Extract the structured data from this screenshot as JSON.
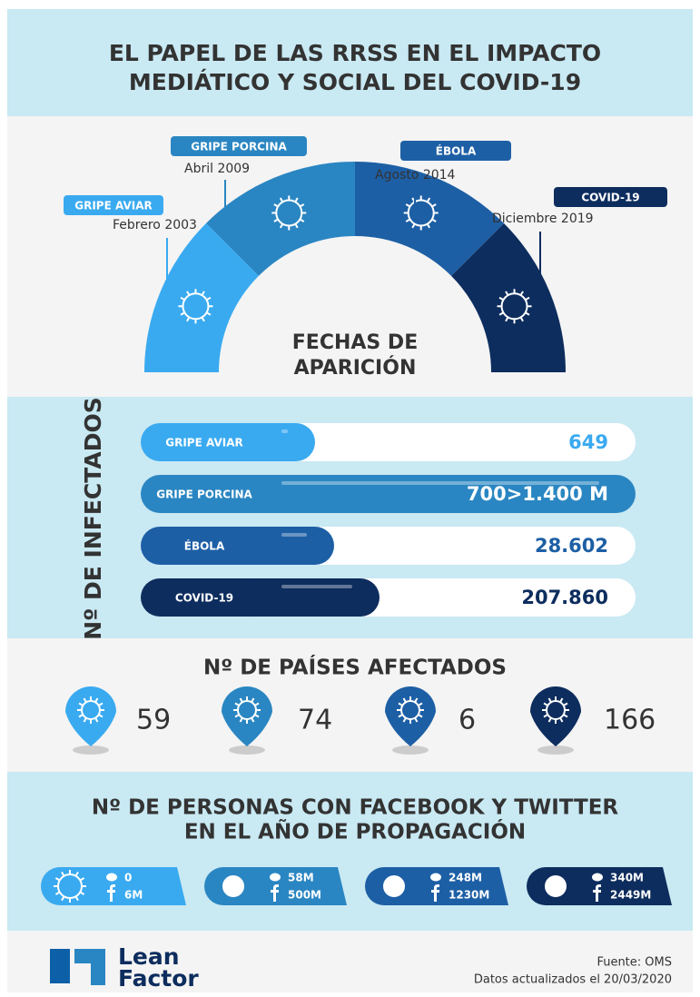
{
  "header": {
    "title_lines": [
      "EL PAPEL DE LAS RRSS EN EL IMPACTO",
      "MEDIÁTICO Y SOCIAL DEL COVID-19"
    ]
  },
  "timeline": {
    "center_lines": [
      "FECHAS DE",
      "APARICIÓN"
    ],
    "events": [
      {
        "name": "GRIPE AVIAR",
        "date": "Febrero 2003"
      },
      {
        "name": "GRIPE PORCINA",
        "date": "Abril 2009"
      },
      {
        "name": "ÉBOLA",
        "date": "Agosto 2014"
      },
      {
        "name": "COVID-19",
        "date": "Diciembre 2019"
      }
    ]
  },
  "infected": {
    "title": "Nº DE INFECTADOS",
    "rows": [
      {
        "name": "GRIPE AVIAR",
        "value": "649"
      },
      {
        "name": "GRIPE PORCINA",
        "value": "700>1.400 M"
      },
      {
        "name": "ÉBOLA",
        "value": "28.602"
      },
      {
        "name": "COVID-19",
        "value": "207.860"
      }
    ]
  },
  "countries": {
    "title": "Nº DE PAÍSES AFECTADOS",
    "values": [
      "59",
      "74",
      "6",
      "166"
    ]
  },
  "social": {
    "title_lines": [
      "Nº DE PERSONAS CON FACEBOOK Y TWITTER",
      "EN EL AÑO DE PROPAGACIÓN"
    ],
    "rows": [
      {
        "twitter": "0",
        "facebook": "6M"
      },
      {
        "twitter": "58M",
        "facebook": "500M"
      },
      {
        "twitter": "248M",
        "facebook": "1230M"
      },
      {
        "twitter": "340M",
        "facebook": "2449M"
      }
    ]
  },
  "footer": {
    "brand_lines": [
      "Lean",
      "Factor"
    ],
    "source": "Fuente: OMS",
    "updated": "Datos actualizados el 20/03/2020"
  }
}
